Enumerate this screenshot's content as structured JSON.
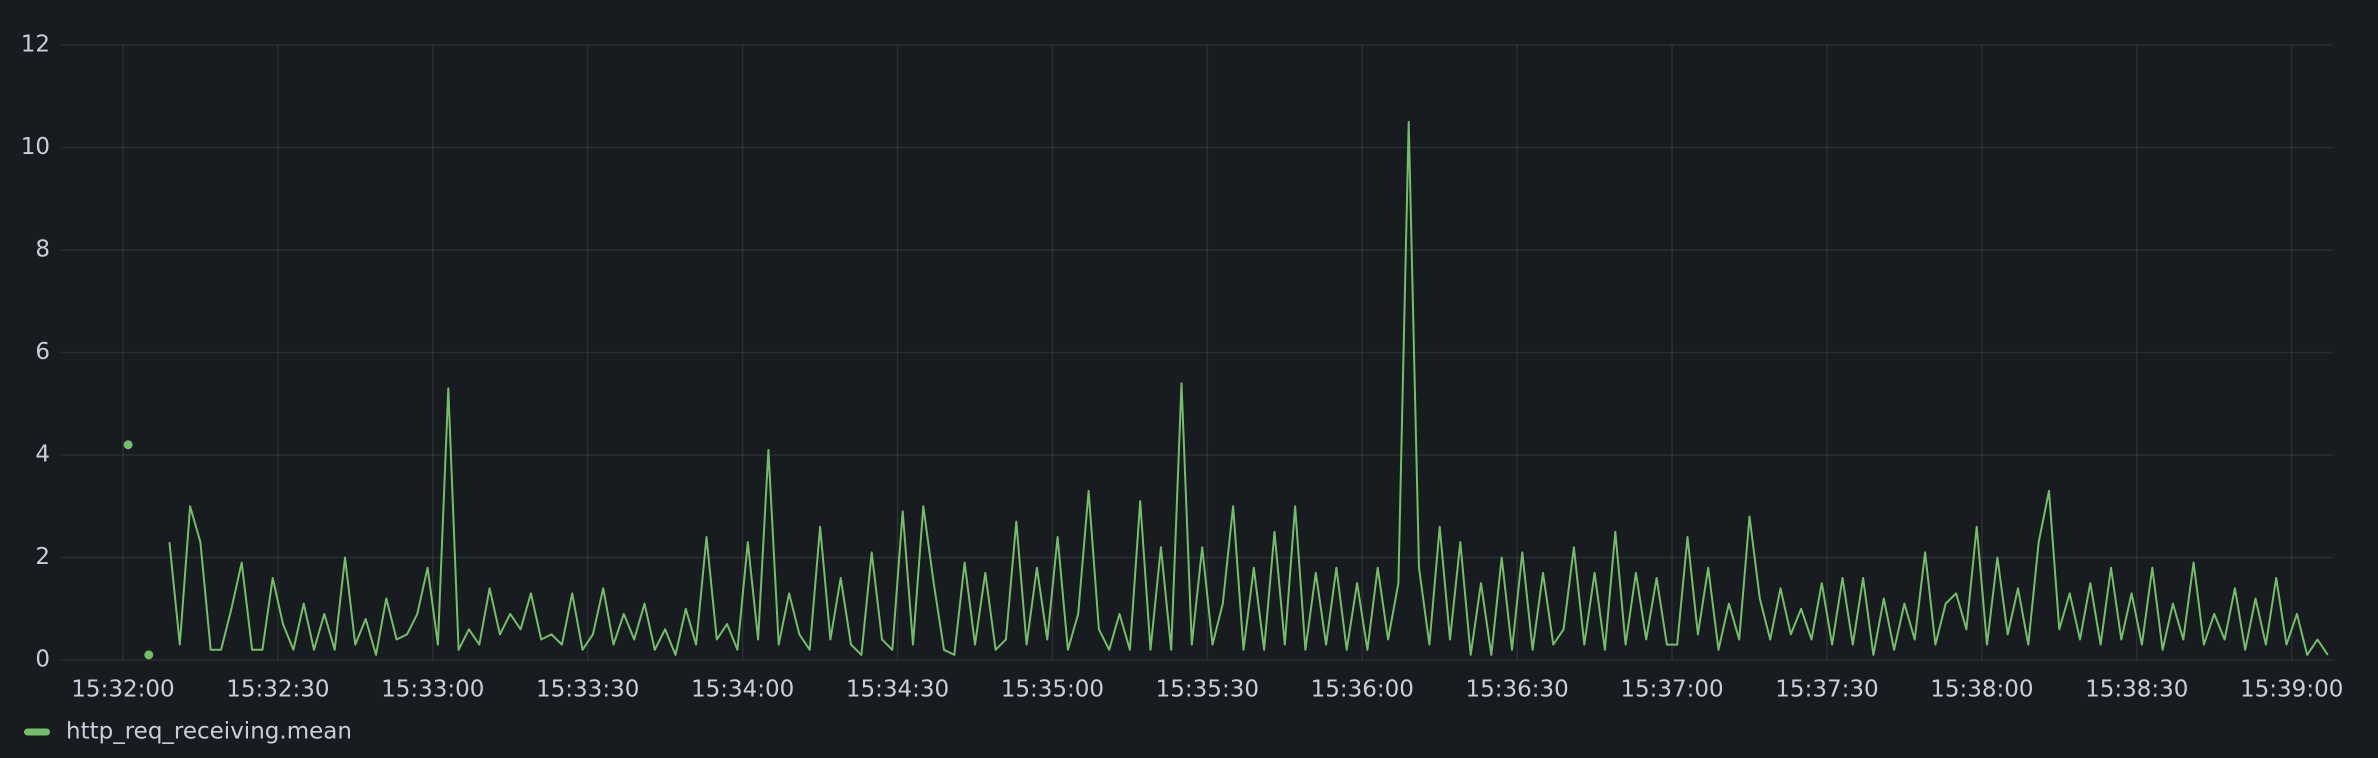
{
  "chart_data": {
    "type": "line",
    "x": [
      "15:32:01",
      "15:32:03",
      "15:32:05",
      "15:32:07",
      "15:32:09",
      "15:32:11",
      "15:32:13",
      "15:32:15",
      "15:32:17",
      "15:32:19",
      "15:32:21",
      "15:32:23",
      "15:32:25",
      "15:32:27",
      "15:32:29",
      "15:32:31",
      "15:32:33",
      "15:32:35",
      "15:32:37",
      "15:32:39",
      "15:32:41",
      "15:32:43",
      "15:32:45",
      "15:32:47",
      "15:32:49",
      "15:32:51",
      "15:32:53",
      "15:32:55",
      "15:32:57",
      "15:32:59",
      "15:33:01",
      "15:33:03",
      "15:33:05",
      "15:33:07",
      "15:33:09",
      "15:33:11",
      "15:33:13",
      "15:33:15",
      "15:33:17",
      "15:33:19",
      "15:33:21",
      "15:33:23",
      "15:33:25",
      "15:33:27",
      "15:33:29",
      "15:33:31",
      "15:33:33",
      "15:33:35",
      "15:33:37",
      "15:33:39",
      "15:33:41",
      "15:33:43",
      "15:33:45",
      "15:33:47",
      "15:33:49",
      "15:33:51",
      "15:33:53",
      "15:33:55",
      "15:33:57",
      "15:33:59",
      "15:34:01",
      "15:34:03",
      "15:34:05",
      "15:34:07",
      "15:34:09",
      "15:34:11",
      "15:34:13",
      "15:34:15",
      "15:34:17",
      "15:34:19",
      "15:34:21",
      "15:34:23",
      "15:34:25",
      "15:34:27",
      "15:34:29",
      "15:34:31",
      "15:34:33",
      "15:34:35",
      "15:34:37",
      "15:34:39",
      "15:34:41",
      "15:34:43",
      "15:34:45",
      "15:34:47",
      "15:34:49",
      "15:34:51",
      "15:34:53",
      "15:34:55",
      "15:34:57",
      "15:34:59",
      "15:35:01",
      "15:35:03",
      "15:35:05",
      "15:35:07",
      "15:35:09",
      "15:35:11",
      "15:35:13",
      "15:35:15",
      "15:35:17",
      "15:35:19",
      "15:35:21",
      "15:35:23",
      "15:35:25",
      "15:35:27",
      "15:35:29",
      "15:35:31",
      "15:35:33",
      "15:35:35",
      "15:35:37",
      "15:35:39",
      "15:35:41",
      "15:35:43",
      "15:35:45",
      "15:35:47",
      "15:35:49",
      "15:35:51",
      "15:35:53",
      "15:35:55",
      "15:35:57",
      "15:35:59",
      "15:36:01",
      "15:36:03",
      "15:36:05",
      "15:36:07",
      "15:36:09",
      "15:36:11",
      "15:36:13",
      "15:36:15",
      "15:36:17",
      "15:36:19",
      "15:36:21",
      "15:36:23",
      "15:36:25",
      "15:36:27",
      "15:36:29",
      "15:36:31",
      "15:36:33",
      "15:36:35",
      "15:36:37",
      "15:36:39",
      "15:36:41",
      "15:36:43",
      "15:36:45",
      "15:36:47",
      "15:36:49",
      "15:36:51",
      "15:36:53",
      "15:36:55",
      "15:36:57",
      "15:36:59",
      "15:37:01",
      "15:37:03",
      "15:37:05",
      "15:37:07",
      "15:37:09",
      "15:37:11",
      "15:37:13",
      "15:37:15",
      "15:37:17",
      "15:37:19",
      "15:37:21",
      "15:37:23",
      "15:37:25",
      "15:37:27",
      "15:37:29",
      "15:37:31",
      "15:37:33",
      "15:37:35",
      "15:37:37",
      "15:37:39",
      "15:37:41",
      "15:37:43",
      "15:37:45",
      "15:37:47",
      "15:37:49",
      "15:37:51",
      "15:37:53",
      "15:37:55",
      "15:37:57",
      "15:37:59",
      "15:38:01",
      "15:38:03",
      "15:38:05",
      "15:38:07",
      "15:38:09",
      "15:38:11",
      "15:38:13",
      "15:38:15",
      "15:38:17",
      "15:38:19",
      "15:38:21",
      "15:38:23",
      "15:38:25",
      "15:38:27",
      "15:38:29",
      "15:38:31",
      "15:38:33",
      "15:38:35",
      "15:38:37",
      "15:38:39",
      "15:38:41",
      "15:38:43",
      "15:38:45",
      "15:38:47",
      "15:38:49",
      "15:38:51",
      "15:38:53",
      "15:38:55",
      "15:38:57",
      "15:38:59",
      "15:39:01",
      "15:39:03",
      "15:39:05",
      "15:39:07"
    ],
    "series": [
      {
        "name": "http_req_receiving.mean",
        "color": "#73bf69",
        "values": [
          4.2,
          null,
          0.1,
          null,
          2.3,
          0.3,
          3.0,
          2.3,
          0.2,
          0.2,
          1.0,
          1.9,
          0.2,
          0.2,
          1.6,
          0.7,
          0.2,
          1.1,
          0.2,
          0.9,
          0.2,
          2.0,
          0.3,
          0.8,
          0.1,
          1.2,
          0.4,
          0.5,
          0.9,
          1.8,
          0.3,
          5.3,
          0.2,
          0.6,
          0.3,
          1.4,
          0.5,
          0.9,
          0.6,
          1.3,
          0.4,
          0.5,
          0.3,
          1.3,
          0.2,
          0.5,
          1.4,
          0.3,
          0.9,
          0.4,
          1.1,
          0.2,
          0.6,
          0.1,
          1.0,
          0.3,
          2.4,
          0.4,
          0.7,
          0.2,
          2.3,
          0.4,
          4.1,
          0.3,
          1.3,
          0.5,
          0.2,
          2.6,
          0.4,
          1.6,
          0.3,
          0.1,
          2.1,
          0.4,
          0.2,
          2.9,
          0.3,
          3.0,
          1.5,
          0.2,
          0.1,
          1.9,
          0.3,
          1.7,
          0.2,
          0.4,
          2.7,
          0.3,
          1.8,
          0.4,
          2.4,
          0.2,
          0.9,
          3.3,
          0.6,
          0.2,
          0.9,
          0.2,
          3.1,
          0.2,
          2.2,
          0.2,
          5.4,
          0.3,
          2.2,
          0.3,
          1.1,
          3.0,
          0.2,
          1.8,
          0.2,
          2.5,
          0.3,
          3.0,
          0.2,
          1.7,
          0.3,
          1.8,
          0.2,
          1.5,
          0.2,
          1.8,
          0.4,
          1.5,
          10.5,
          1.8,
          0.3,
          2.6,
          0.4,
          2.3,
          0.1,
          1.5,
          0.1,
          2.0,
          0.2,
          2.1,
          0.2,
          1.7,
          0.3,
          0.6,
          2.2,
          0.3,
          1.7,
          0.2,
          2.5,
          0.3,
          1.7,
          0.4,
          1.6,
          0.3,
          0.3,
          2.4,
          0.5,
          1.8,
          0.2,
          1.1,
          0.4,
          2.8,
          1.2,
          0.4,
          1.4,
          0.5,
          1.0,
          0.4,
          1.5,
          0.3,
          1.6,
          0.3,
          1.6,
          0.1,
          1.2,
          0.2,
          1.1,
          0.4,
          2.1,
          0.3,
          1.1,
          1.3,
          0.6,
          2.6,
          0.3,
          2.0,
          0.5,
          1.4,
          0.3,
          2.3,
          3.3,
          0.6,
          1.3,
          0.4,
          1.5,
          0.3,
          1.8,
          0.4,
          1.3,
          0.3,
          1.8,
          0.2,
          1.1,
          0.4,
          1.9,
          0.3,
          0.9,
          0.4,
          1.4,
          0.2,
          1.2,
          0.3,
          1.6,
          0.3,
          0.9,
          0.1,
          0.4,
          0.1
        ]
      }
    ],
    "xlim": [
      "15:31:48",
      "15:39:08"
    ],
    "xticks": [
      "15:32:00",
      "15:32:30",
      "15:33:00",
      "15:33:30",
      "15:34:00",
      "15:34:30",
      "15:35:00",
      "15:35:30",
      "15:36:00",
      "15:36:30",
      "15:37:00",
      "15:37:30",
      "15:38:00",
      "15:38:30",
      "15:39:00"
    ],
    "ylim": [
      0,
      12
    ],
    "yticks": [
      0,
      2,
      4,
      6,
      8,
      10,
      12
    ],
    "grid": true,
    "legend": "bottom"
  }
}
